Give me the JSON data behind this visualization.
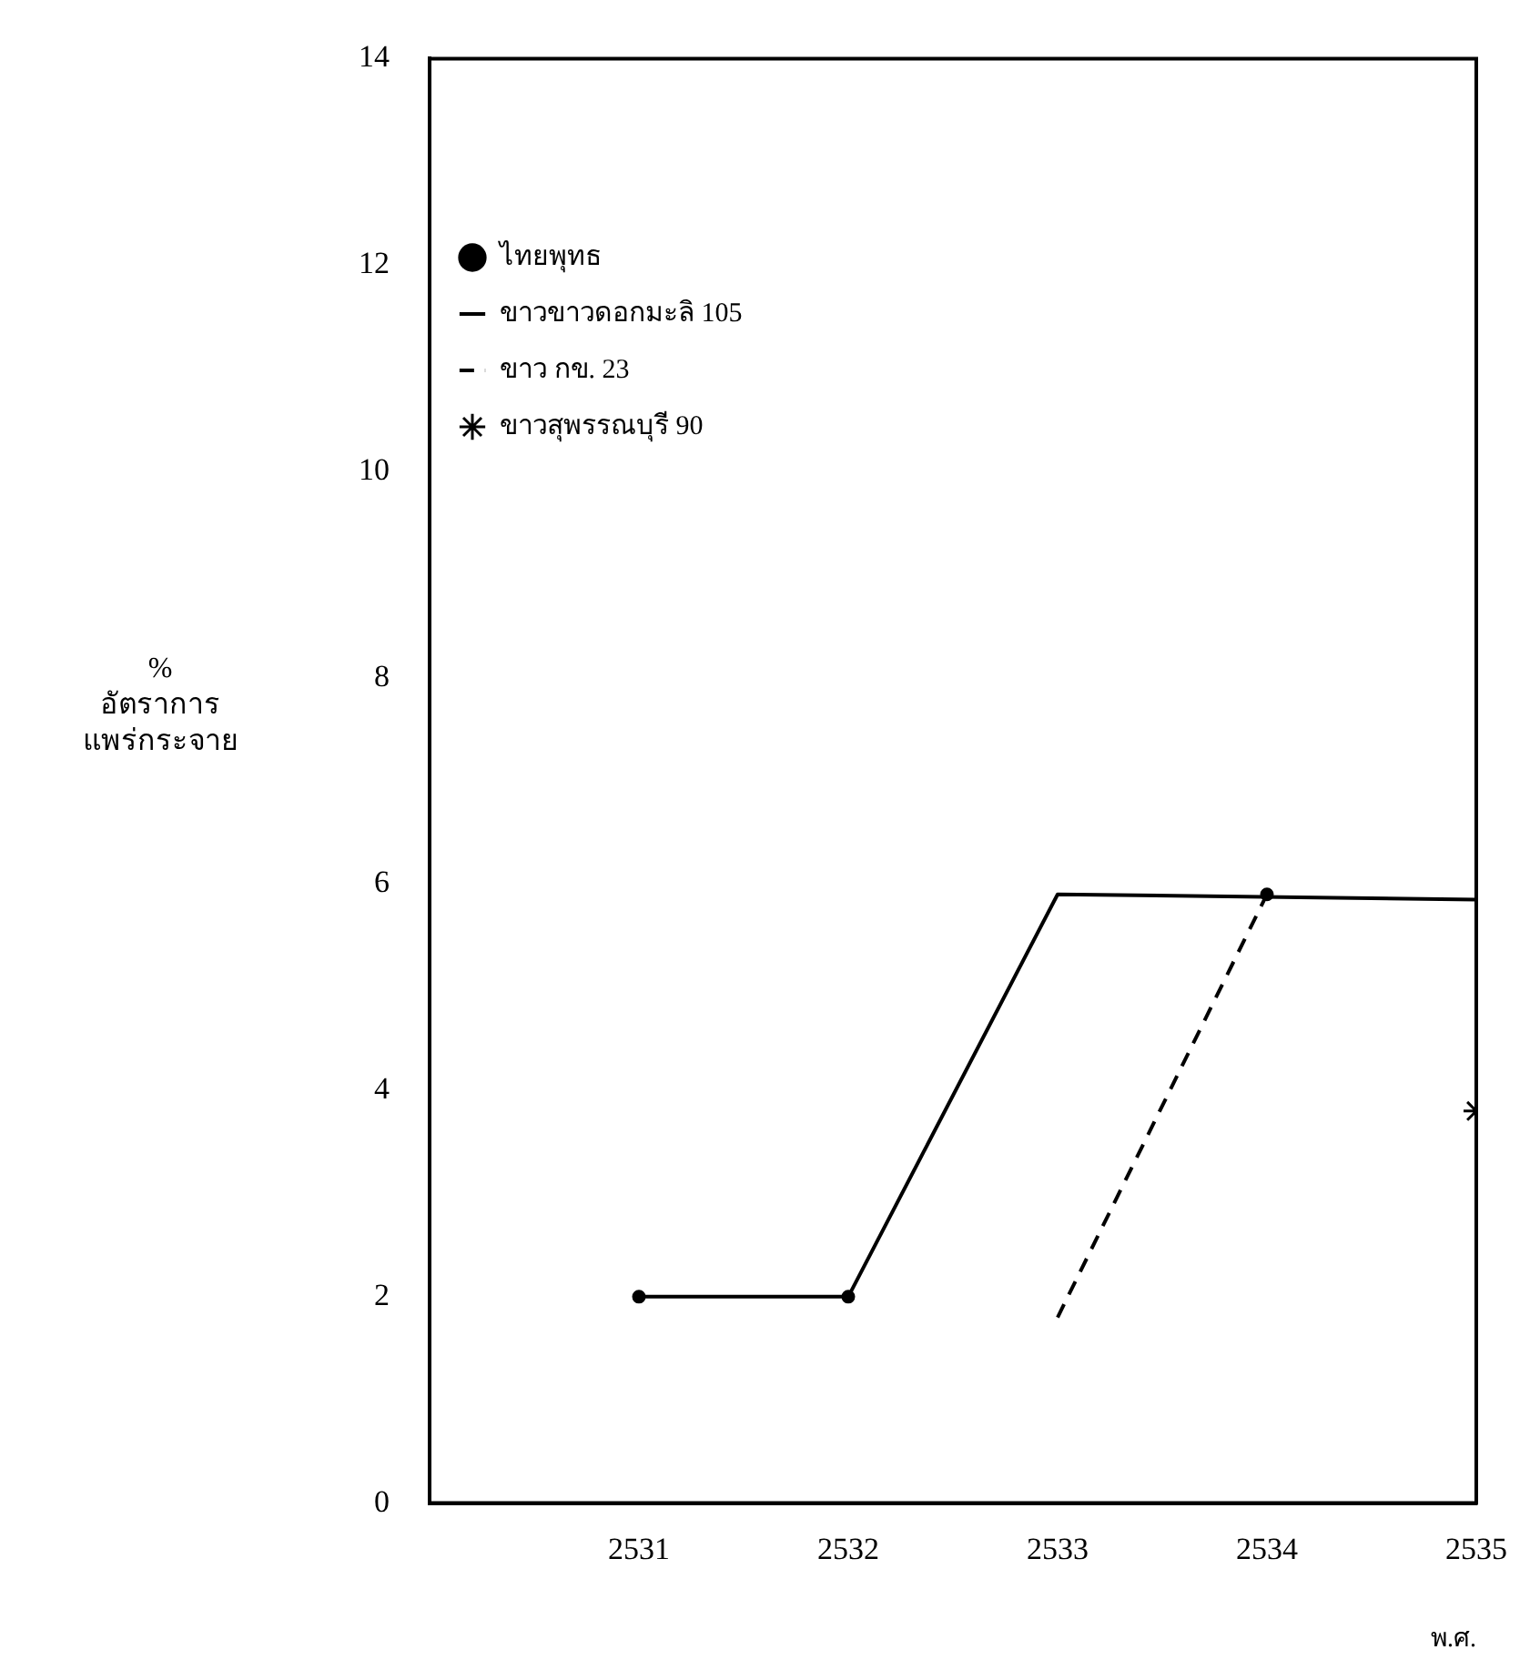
{
  "chart_data": {
    "type": "line",
    "xlabel": "พ.ศ.",
    "ylabel": "%\nอัตราการ\nแพร่กระจาย",
    "xlim": [
      2530,
      2535
    ],
    "xticks": [
      2531,
      2532,
      2533,
      2534,
      2535
    ],
    "ylim": [
      0,
      14
    ],
    "yticks": [
      0,
      2,
      4,
      6,
      8,
      10,
      12,
      14
    ],
    "grid": false,
    "legend": "top left",
    "series": [
      {
        "name": "ไทยพุทธ",
        "type": "scatter",
        "marker": "circle",
        "color": "#000000",
        "x": [
          2531,
          2532,
          2534
        ],
        "values": [
          2,
          2,
          5.9
        ]
      },
      {
        "name": "ขาวขาวดอกมะลิ 105",
        "line_style": "solid",
        "color": "#000000",
        "x": [
          2531,
          2532,
          2533,
          2535
        ],
        "values": [
          2,
          2,
          5.9,
          5.85
        ]
      },
      {
        "name": "ขาว กข. 23",
        "line_style": "dashed",
        "color": "#000000",
        "x": [
          2533,
          2534
        ],
        "values": [
          1.8,
          5.9
        ]
      },
      {
        "name": "ขาวสุพรรณบุรี 90",
        "type": "scatter",
        "marker": "cross",
        "color": "#000000",
        "x": [
          2535
        ],
        "values": [
          3.8
        ]
      }
    ]
  }
}
